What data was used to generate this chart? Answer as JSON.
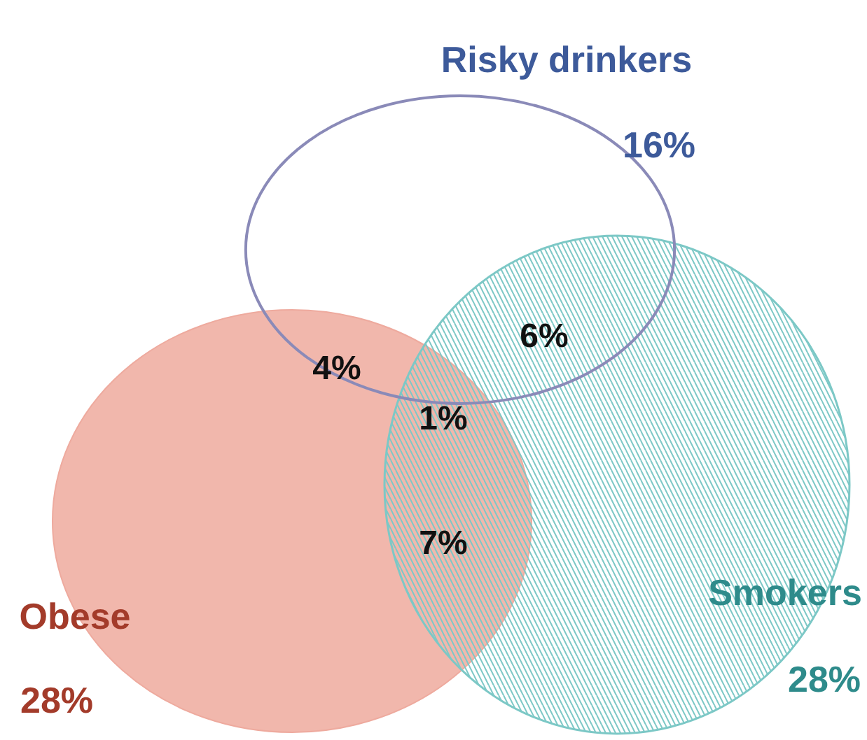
{
  "chart_data": {
    "type": "other",
    "categories": [
      "Risky drinkers",
      "Obese",
      "Smokers"
    ],
    "values": [
      16,
      28,
      28
    ],
    "value_labels": [
      "16%",
      "28%",
      "28%"
    ],
    "colors": [
      "#8a8ab8",
      "#eeaa9e",
      "#7cc8c6"
    ],
    "annotations": [
      "4%",
      "6%",
      "1%",
      "7%"
    ]
  }
}
